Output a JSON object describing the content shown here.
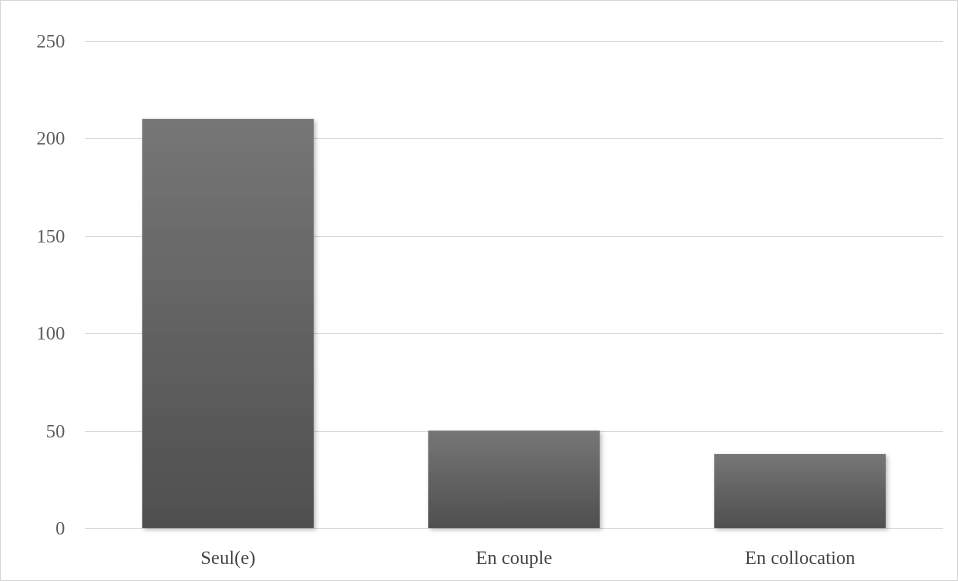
{
  "chart_data": {
    "type": "bar",
    "title": "",
    "xlabel": "",
    "ylabel": "",
    "categories": [
      "Seul(e)",
      "En couple",
      "En collocation"
    ],
    "values": [
      210,
      50,
      38
    ],
    "ylim": [
      0,
      250
    ],
    "yticks": [
      0,
      50,
      100,
      150,
      200,
      250
    ],
    "ytick_labels": [
      "0",
      "50",
      "100",
      "150",
      "200",
      "250"
    ],
    "grid": true,
    "legend": "none",
    "bar_color_top": "#767676",
    "bar_color_bottom": "#4f4f4f",
    "grid_color": "#d9d9d9"
  }
}
